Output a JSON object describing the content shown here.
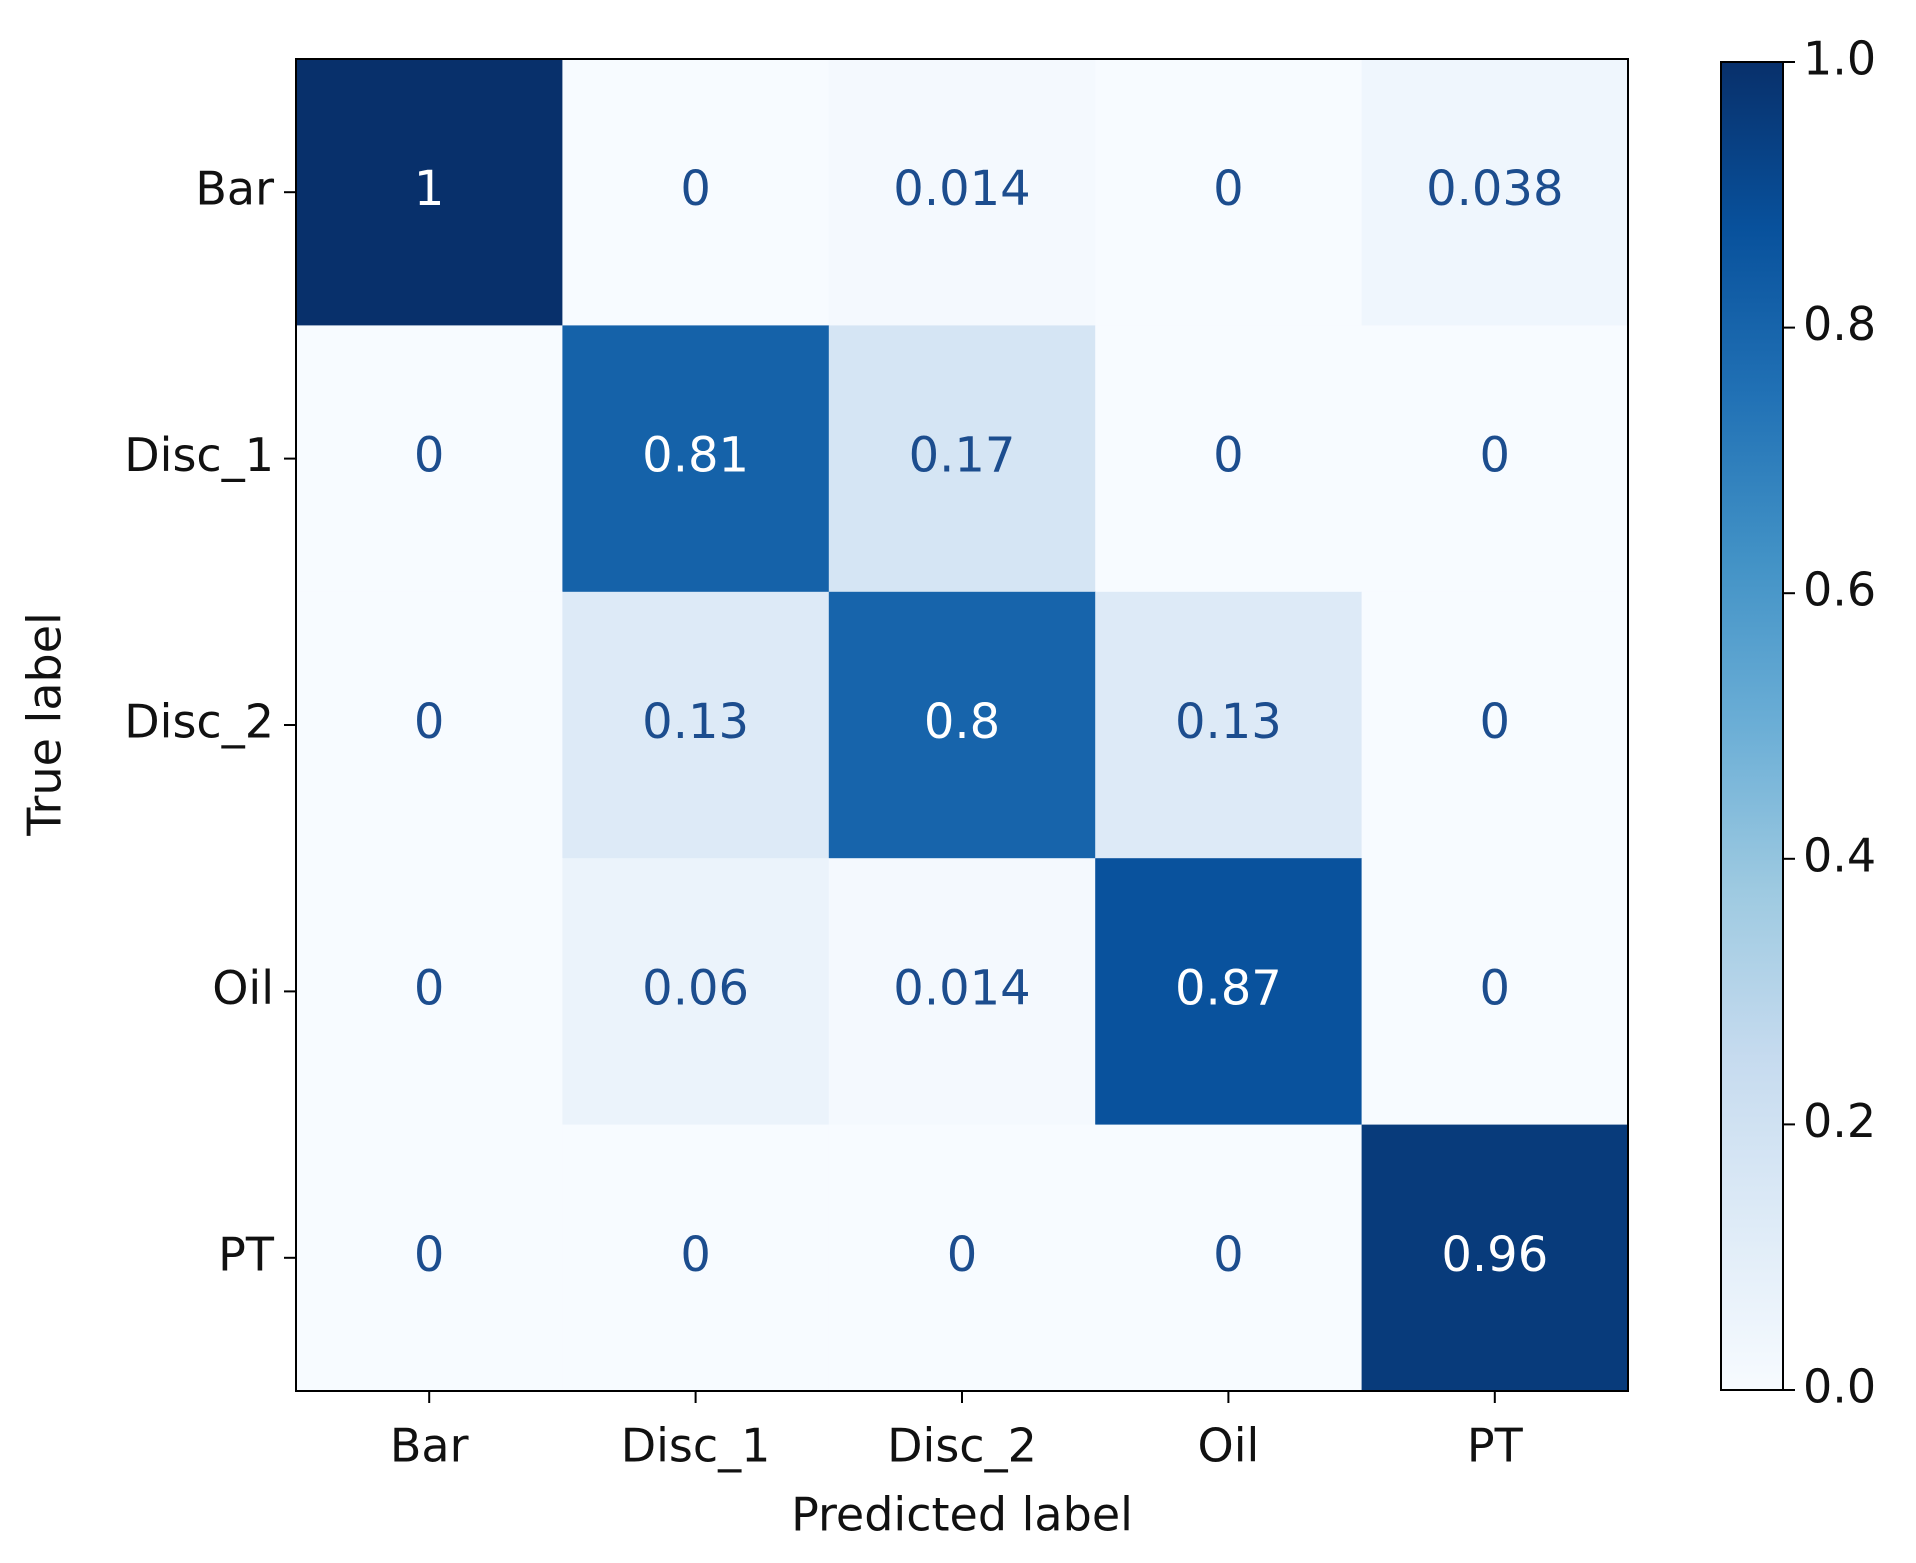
{
  "chart_data": {
    "type": "heatmap",
    "x_label": "Predicted label",
    "y_label": "True label",
    "columns": [
      "Bar",
      "Disc_1",
      "Disc_2",
      "Oil",
      "PT"
    ],
    "rows": [
      "Bar",
      "Disc_1",
      "Disc_2",
      "Oil",
      "PT"
    ],
    "values": [
      [
        1,
        0,
        0.014,
        0,
        0.038
      ],
      [
        0,
        0.81,
        0.17,
        0,
        0
      ],
      [
        0,
        0.13,
        0.8,
        0.13,
        0
      ],
      [
        0,
        0.06,
        0.014,
        0.87,
        0
      ],
      [
        0,
        0,
        0,
        0,
        0.96
      ]
    ],
    "colormap": "Blues",
    "clim": [
      0,
      1
    ],
    "cticks": [
      {
        "value": 0,
        "label": "0.0"
      },
      0.2,
      0.4,
      0.6,
      0.8,
      {
        "value": 1,
        "label": "1.0"
      }
    ]
  }
}
